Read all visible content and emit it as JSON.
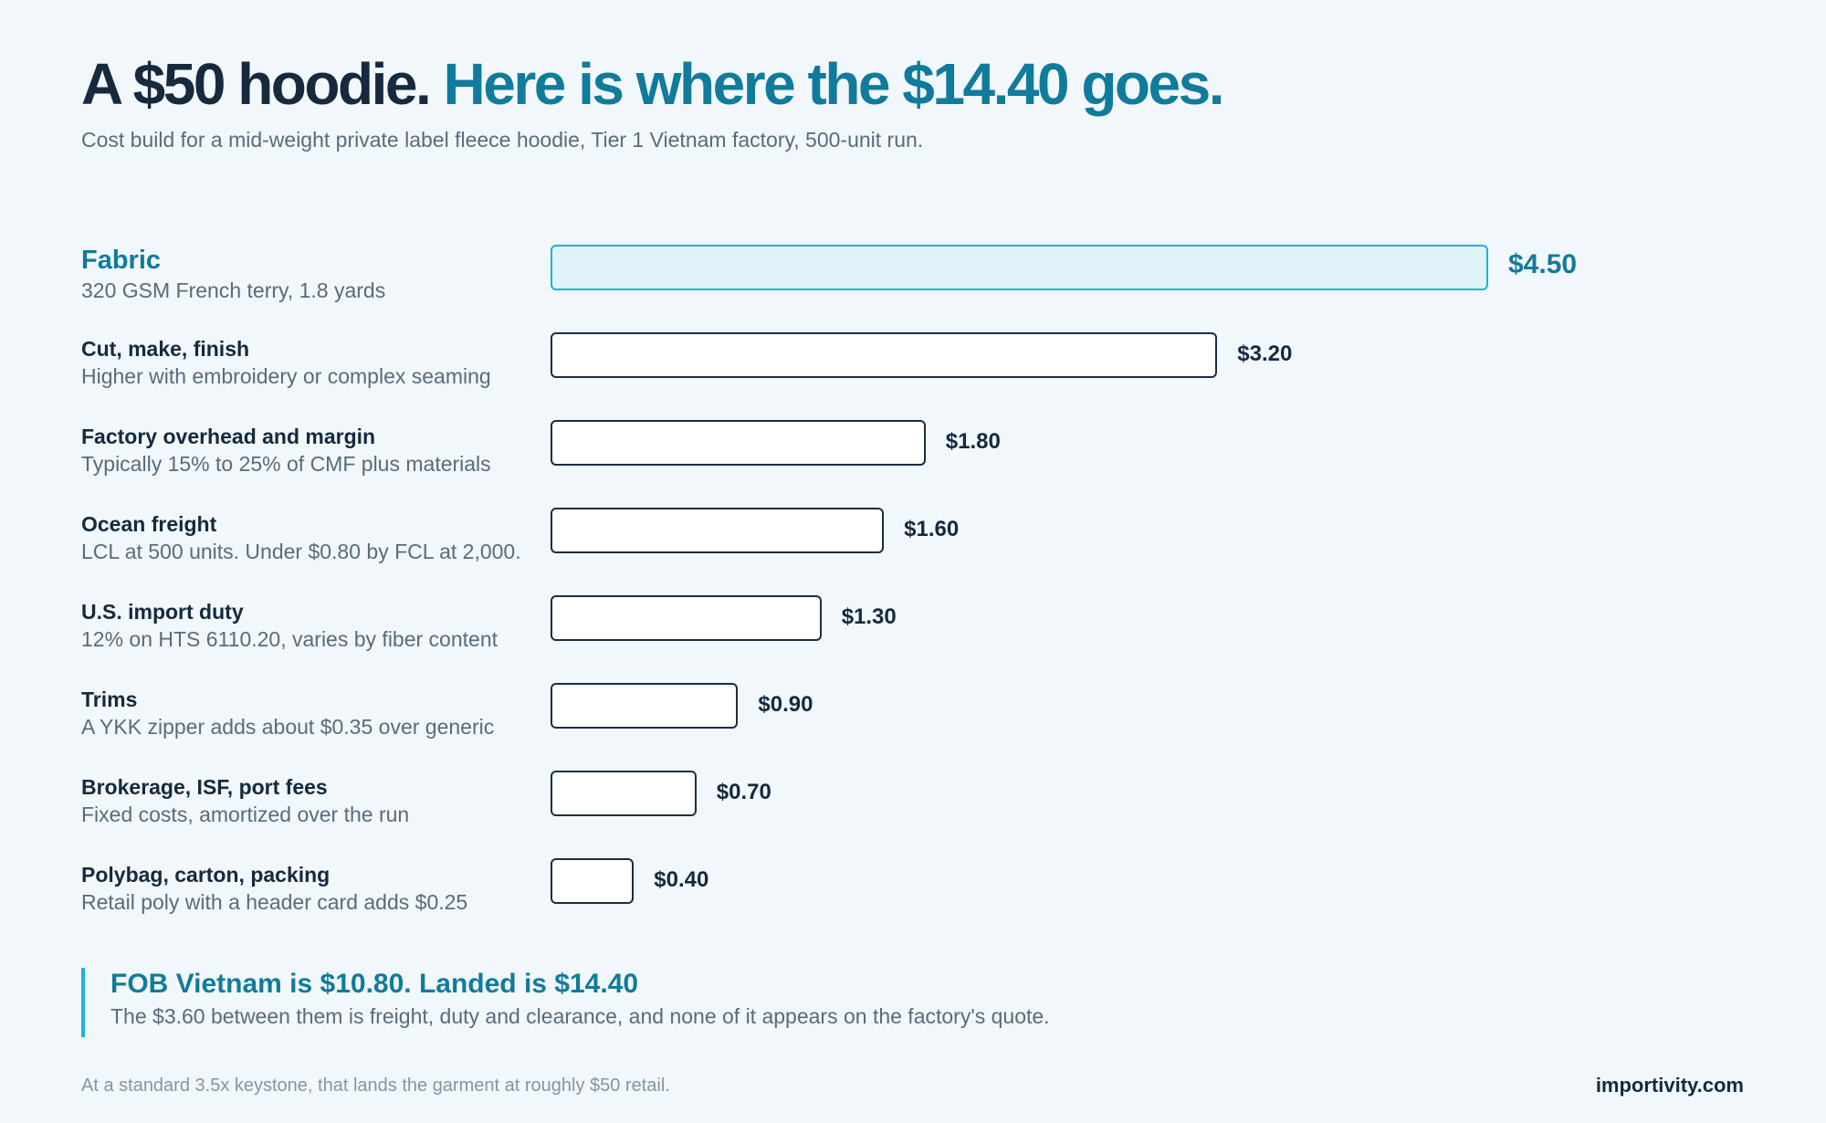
{
  "header": {
    "title_part1": "A $50 hoodie.",
    "title_part2": "Here is where the $14.40 goes.",
    "subtitle": "Cost build for a mid-weight private label fleece hoodie, Tier 1 Vietnam factory, 500-unit run."
  },
  "chart_data": {
    "type": "bar",
    "orientation": "horizontal",
    "title": "",
    "xlabel": "",
    "ylabel": "",
    "xlim": [
      0,
      4.5
    ],
    "categories": [
      "Fabric",
      "Cut, make, finish",
      "Factory overhead and margin",
      "Ocean freight",
      "U.S. import duty",
      "Trims",
      "Brokerage, ISF, port fees",
      "Polybag, carton, packing"
    ],
    "descriptions": [
      "320 GSM French terry, 1.8 yards",
      "Higher with embroidery or complex seaming",
      "Typically 15% to 25% of CMF plus materials",
      "LCL at 500 units. Under $0.80 by FCL at 2,000.",
      "12% on HTS 6110.20, varies by fiber content",
      "A YKK zipper adds about $0.35 over generic",
      "Fixed costs, amortized over the run",
      "Retail poly with a header card adds $0.25"
    ],
    "values": [
      4.5,
      3.2,
      1.8,
      1.6,
      1.3,
      0.9,
      0.7,
      0.4
    ],
    "value_labels": [
      "$4.50",
      "$3.20",
      "$1.80",
      "$1.60",
      "$1.30",
      "$0.90",
      "$0.70",
      "$0.40"
    ],
    "highlight_color": "#1bb4d4",
    "bar_outline_color": "#1a2e43",
    "grid": false
  },
  "callout": {
    "title": "FOB Vietnam is $10.80. Landed is $14.40",
    "text": "The $3.60 between them is freight, duty and clearance, and none of it appears on the factory's quote."
  },
  "footer": {
    "note": "At a standard 3.5x keystone, that lands the garment at roughly $50 retail.",
    "brand": "importivity.com"
  }
}
